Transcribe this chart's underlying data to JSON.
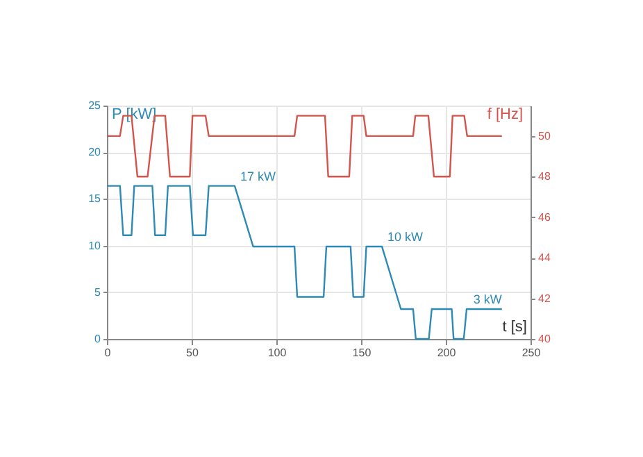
{
  "chart_data": {
    "type": "line",
    "xlabel": "t [s]",
    "ylabel": "P [kW]",
    "y2label": "f [Hz]",
    "xlim": [
      0,
      250
    ],
    "xticks": [
      0,
      50,
      100,
      150,
      200,
      250
    ],
    "ylim": [
      0,
      25
    ],
    "yticks": [
      0,
      5,
      10,
      15,
      20,
      25
    ],
    "y2lim": [
      40,
      51.5
    ],
    "y2ticks": [
      40,
      42,
      44,
      46,
      48,
      50
    ],
    "grid": true,
    "line_style": "solid",
    "series": [
      {
        "color": "#2e8ab5",
        "x": [
          0,
          7.7,
          9.6,
          14.5,
          16.1,
          26.8,
          28.4,
          34.4,
          36,
          48.9,
          50.8,
          58.2,
          60.1,
          75.4,
          86.3,
          110.7,
          112.3,
          127.9,
          129.5,
          143.8,
          145.4,
          151.5,
          153.1,
          162.3,
          173.5,
          180.7,
          182.3,
          190,
          191.7,
          203.5,
          204.6,
          210.6,
          212.3,
          233.1
        ],
        "values": [
          16.4,
          16.4,
          11.1,
          11.1,
          16.4,
          16.4,
          11.1,
          11.1,
          16.4,
          16.4,
          11.1,
          11.1,
          16.4,
          16.4,
          9.9,
          9.9,
          4.5,
          4.5,
          9.9,
          9.9,
          4.5,
          4.5,
          9.9,
          9.9,
          3.2,
          3.2,
          0,
          0,
          3.2,
          3.2,
          0,
          0,
          3.2,
          3.2
        ]
      },
      {
        "color": "#d4544c",
        "axis": "y2",
        "x": [
          0,
          7.7,
          9.6,
          14.5,
          18,
          24,
          28.1,
          34.4,
          37.2,
          48.9,
          50.5,
          58.2,
          60.1,
          110.7,
          112.3,
          128.7,
          130.6,
          143,
          144.8,
          151.5,
          153.1,
          180.7,
          182,
          189.7,
          193,
          202.4,
          204,
          210.9,
          212.6,
          233.1
        ],
        "values": [
          50,
          50,
          51,
          51,
          48,
          48,
          51,
          51,
          48,
          48,
          51,
          51,
          50,
          50,
          51,
          51,
          48,
          48,
          51,
          51,
          50,
          50,
          51,
          51,
          48,
          48,
          51,
          51,
          50,
          50
        ]
      }
    ],
    "annotations": [
      {
        "text": "17 kW",
        "x": 75.4,
        "y": 16.4
      },
      {
        "text": "10 kW",
        "x": 162.3,
        "y": 9.9
      },
      {
        "text": "3 kW",
        "x": 233.1,
        "y": 3.2
      }
    ]
  }
}
